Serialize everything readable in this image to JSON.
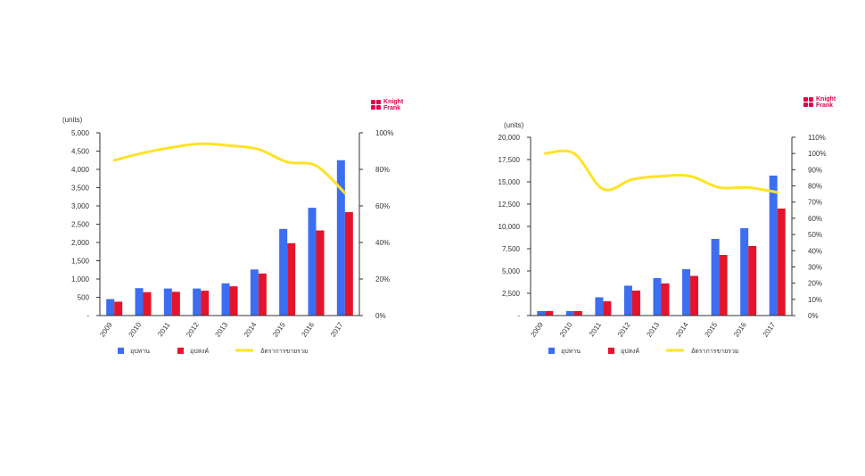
{
  "colors": {
    "supply": "#3b6ef0",
    "demand": "#e5142c",
    "ratio": "#ffe227",
    "axis": "#333333"
  },
  "charts": [
    {
      "id": "left",
      "logo": {
        "icon": "knight-frank-logo",
        "line1": "Knight",
        "line2": "Frank"
      },
      "units_label": "(units)",
      "y_ticks": [
        "-",
        "500",
        "1,000",
        "1,500",
        "2,000",
        "2,500",
        "3,000",
        "3,500",
        "4,000",
        "4,500",
        "5,000"
      ],
      "y2_ticks": [
        "0%",
        "20%",
        "40%",
        "60%",
        "80%",
        "100%"
      ],
      "legend": [
        "อุปทาน",
        "อุปสงค์",
        "อัตราการขายรวม"
      ]
    },
    {
      "id": "right",
      "logo": {
        "icon": "knight-frank-logo",
        "line1": "Knight",
        "line2": "Frank"
      },
      "units_label": "(units)",
      "y_ticks": [
        "-",
        "2,500",
        "5,000",
        "7,500",
        "10,000",
        "12,500",
        "15,000",
        "17,500",
        "20,000"
      ],
      "y2_ticks": [
        "0%",
        "10%",
        "20%",
        "30%",
        "40%",
        "50%",
        "60%",
        "70%",
        "80%",
        "90%",
        "100%",
        "110%"
      ],
      "legend": [
        "อุปทาน",
        "อุปสงค์",
        "อัตราการขายรวม"
      ]
    }
  ],
  "chart_data": [
    {
      "type": "bar",
      "categories": [
        "2009",
        "2010",
        "2011",
        "2012",
        "2013",
        "2014",
        "2015",
        "2016",
        "2017"
      ],
      "series": [
        {
          "name": "อุปทาน",
          "values": [
            450,
            750,
            740,
            740,
            880,
            1260,
            2370,
            2950,
            4250
          ]
        },
        {
          "name": "อุปสงค์",
          "values": [
            380,
            640,
            650,
            680,
            800,
            1150,
            1980,
            2330,
            2830
          ]
        }
      ],
      "line_series": {
        "name": "อัตราการขายรวม",
        "axis": "right",
        "values": [
          85,
          89,
          92,
          94,
          93,
          91,
          84,
          82,
          67
        ]
      },
      "ylim": [
        0,
        5000
      ],
      "y2lim": [
        0,
        100
      ],
      "ylabel": "(units)",
      "legend_position": "bottom"
    },
    {
      "type": "bar",
      "categories": [
        "2009",
        "2010",
        "2011",
        "2012",
        "2013",
        "2014",
        "2015",
        "2016",
        "2017"
      ],
      "series": [
        {
          "name": "อุปทาน",
          "values": [
            500,
            500,
            2050,
            3350,
            4200,
            5200,
            8600,
            9800,
            15700
          ]
        },
        {
          "name": "อุปสงค์",
          "values": [
            500,
            500,
            1600,
            2800,
            3600,
            4450,
            6800,
            7800,
            12000
          ]
        }
      ],
      "line_series": {
        "name": "อัตราการขายรวม",
        "axis": "right",
        "values": [
          100,
          100,
          78,
          84,
          86,
          86,
          79,
          79,
          76
        ]
      },
      "ylim": [
        0,
        20000
      ],
      "y2lim": [
        0,
        110
      ],
      "ylabel": "(units)",
      "legend_position": "bottom"
    }
  ]
}
